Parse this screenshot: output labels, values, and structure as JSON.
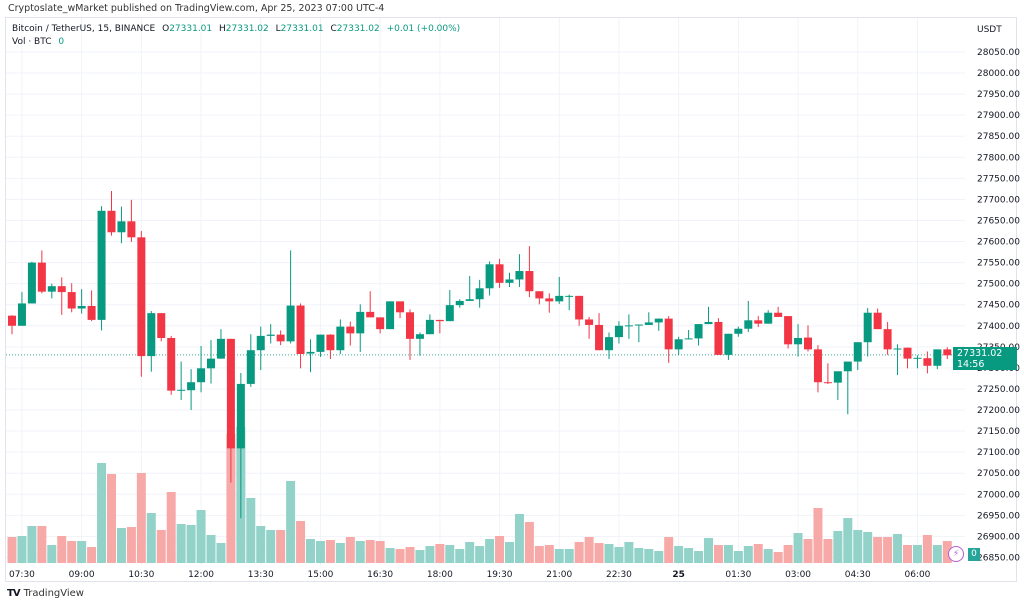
{
  "header": {
    "published": "Cryptoslate_wMarket published on TradingView.com, Apr 25, 2023 07:00 UTC-4"
  },
  "legend": {
    "symbol": "Bitcoin / TetherUS, 15, BINANCE",
    "o_label": "O",
    "o_value": "27331.01",
    "h_label": "H",
    "h_value": "27331.02",
    "l_label": "L",
    "l_value": "27331.01",
    "c_label": "C",
    "c_value": "27331.02",
    "change": "+0.01 (+0.00%)",
    "vol_label": "Vol · BTC",
    "vol_value": "0"
  },
  "price_axis": {
    "currency": "USDT",
    "current_price": "27331.02",
    "countdown": "14:56",
    "volume_badge": "0"
  },
  "footer": {
    "brand": "TradingView"
  },
  "colors": {
    "up": "#089981",
    "down": "#f23645",
    "vol_up": "#92d2c8",
    "vol_down": "#f7a9a7",
    "grid": "#f0f3fa"
  },
  "chart_data": {
    "type": "candlestick",
    "title": "Bitcoin / TetherUS, 15, BINANCE",
    "interval_minutes": 15,
    "first_candle_time": "07:15",
    "ylabel": "USDT",
    "ylim": [
      26850,
      28050
    ],
    "y_ticks": [
      28050,
      28000,
      27950,
      27900,
      27850,
      27800,
      27750,
      27700,
      27650,
      27600,
      27550,
      27500,
      27450,
      27400,
      27350,
      27300,
      27250,
      27200,
      27150,
      27100,
      27050,
      27000,
      26950,
      26900,
      26850
    ],
    "x_ticks": [
      {
        "label": "07:30",
        "candle": 1
      },
      {
        "label": "09:00",
        "candle": 7
      },
      {
        "label": "10:30",
        "candle": 13
      },
      {
        "label": "12:00",
        "candle": 19
      },
      {
        "label": "13:30",
        "candle": 25
      },
      {
        "label": "15:00",
        "candle": 31
      },
      {
        "label": "16:30",
        "candle": 37
      },
      {
        "label": "18:00",
        "candle": 43
      },
      {
        "label": "19:30",
        "candle": 49
      },
      {
        "label": "21:00",
        "candle": 55
      },
      {
        "label": "22:30",
        "candle": 61
      },
      {
        "label": "25",
        "candle": 67
      },
      {
        "label": "01:30",
        "candle": 73
      },
      {
        "label": "03:00",
        "candle": 79
      },
      {
        "label": "04:30",
        "candle": 85
      },
      {
        "label": "06:00",
        "candle": 91
      }
    ],
    "ohlc": [
      [
        27424,
        27425,
        27380,
        27400
      ],
      [
        27400,
        27480,
        27400,
        27453
      ],
      [
        27453,
        27552,
        27453,
        27550
      ],
      [
        27550,
        27579,
        27477,
        27481
      ],
      [
        27481,
        27500,
        27465,
        27494
      ],
      [
        27494,
        27515,
        27426,
        27480
      ],
      [
        27480,
        27501,
        27432,
        27441
      ],
      [
        27441,
        27487,
        27429,
        27447
      ],
      [
        27447,
        27484,
        27411,
        27414
      ],
      [
        27414,
        27684,
        27389,
        27673
      ],
      [
        27673,
        27720,
        27614,
        27622
      ],
      [
        27622,
        27683,
        27596,
        27648
      ],
      [
        27648,
        27699,
        27599,
        27610
      ],
      [
        27610,
        27625,
        27279,
        27328
      ],
      [
        27328,
        27435,
        27291,
        27430
      ],
      [
        27430,
        27430,
        27363,
        27371
      ],
      [
        27371,
        27376,
        27236,
        27246
      ],
      [
        27246,
        27315,
        27224,
        27248
      ],
      [
        27247,
        27297,
        27200,
        27266
      ],
      [
        27266,
        27352,
        27242,
        27299
      ],
      [
        27299,
        27366,
        27263,
        27322
      ],
      [
        27322,
        27392,
        27322,
        27369
      ],
      [
        27369,
        27369,
        27028,
        27109
      ],
      [
        27109,
        27288,
        26943,
        27262
      ],
      [
        27262,
        27380,
        27255,
        27342
      ],
      [
        27342,
        27398,
        27295,
        27376
      ],
      [
        27376,
        27404,
        27358,
        27379
      ],
      [
        27379,
        27389,
        27354,
        27363
      ],
      [
        27363,
        27579,
        27358,
        27448
      ],
      [
        27448,
        27453,
        27299,
        27333
      ],
      [
        27334,
        27368,
        27290,
        27338
      ],
      [
        27338,
        27379,
        27326,
        27379
      ],
      [
        27379,
        27380,
        27321,
        27342
      ],
      [
        27342,
        27415,
        27333,
        27398
      ],
      [
        27398,
        27410,
        27353,
        27382
      ],
      [
        27382,
        27451,
        27338,
        27433
      ],
      [
        27433,
        27482,
        27420,
        27420
      ],
      [
        27420,
        27420,
        27382,
        27392
      ],
      [
        27392,
        27458,
        27392,
        27458
      ],
      [
        27458,
        27458,
        27418,
        27432
      ],
      [
        27432,
        27439,
        27319,
        27369
      ],
      [
        27369,
        27384,
        27329,
        27380
      ],
      [
        27380,
        27427,
        27380,
        27414
      ],
      [
        27414,
        27414,
        27382,
        27411
      ],
      [
        27411,
        27485,
        27411,
        27449
      ],
      [
        27449,
        27463,
        27443,
        27459
      ],
      [
        27459,
        27518,
        27459,
        27463
      ],
      [
        27463,
        27509,
        27443,
        27489
      ],
      [
        27489,
        27553,
        27472,
        27546
      ],
      [
        27546,
        27559,
        27490,
        27502
      ],
      [
        27502,
        27526,
        27492,
        27510
      ],
      [
        27510,
        27570,
        27492,
        27530
      ],
      [
        27530,
        27589,
        27468,
        27482
      ],
      [
        27482,
        27482,
        27451,
        27465
      ],
      [
        27465,
        27477,
        27431,
        27458
      ],
      [
        27458,
        27516,
        27452,
        27471
      ],
      [
        27469,
        27474,
        27437,
        27471
      ],
      [
        27471,
        27471,
        27400,
        27415
      ],
      [
        27415,
        27421,
        27369,
        27402
      ],
      [
        27402,
        27430,
        27342,
        27342
      ],
      [
        27342,
        27384,
        27321,
        27373
      ],
      [
        27373,
        27411,
        27358,
        27400
      ],
      [
        27399,
        27427,
        27369,
        27401
      ],
      [
        27401,
        27403,
        27361,
        27403
      ],
      [
        27402,
        27432,
        27402,
        27408
      ],
      [
        27408,
        27417,
        27388,
        27417
      ],
      [
        27417,
        27423,
        27312,
        27344
      ],
      [
        27344,
        27374,
        27331,
        27368
      ],
      [
        27368,
        27390,
        27368,
        27370
      ],
      [
        27370,
        27404,
        27353,
        27404
      ],
      [
        27404,
        27445,
        27404,
        27409
      ],
      [
        27409,
        27418,
        27331,
        27331
      ],
      [
        27331,
        27381,
        27319,
        27381
      ],
      [
        27381,
        27398,
        27374,
        27393
      ],
      [
        27393,
        27459,
        27385,
        27413
      ],
      [
        27413,
        27423,
        27397,
        27405
      ],
      [
        27405,
        27437,
        27405,
        27431
      ],
      [
        27431,
        27445,
        27421,
        27421
      ],
      [
        27423,
        27423,
        27346,
        27356
      ],
      [
        27356,
        27404,
        27327,
        27371
      ],
      [
        27372,
        27401,
        27339,
        27344
      ],
      [
        27344,
        27354,
        27242,
        27266
      ],
      [
        27266,
        27311,
        27262,
        27265
      ],
      [
        27265,
        27292,
        27224,
        27292
      ],
      [
        27292,
        27315,
        27190,
        27315
      ],
      [
        27315,
        27361,
        27295,
        27361
      ],
      [
        27361,
        27442,
        27327,
        27431
      ],
      [
        27431,
        27441,
        27392,
        27392
      ],
      [
        27392,
        27409,
        27331,
        27344
      ],
      [
        27344,
        27356,
        27283,
        27346
      ],
      [
        27348,
        27348,
        27299,
        27322
      ],
      [
        27322,
        27330,
        27299,
        27324
      ],
      [
        27323,
        27339,
        27287,
        27305
      ],
      [
        27305,
        27344,
        27297,
        27344
      ],
      [
        27344,
        27349,
        27321,
        27330
      ],
      [
        27331.01,
        27331.02,
        27331.01,
        27331.02
      ]
    ],
    "volume_relative": [
      26,
      27,
      37,
      37,
      18,
      27,
      22,
      22,
      16,
      100,
      89,
      35,
      36,
      90,
      50,
      33,
      71,
      39,
      38,
      53,
      28,
      20,
      129,
      136,
      65,
      37,
      33,
      33,
      82,
      42,
      24,
      22,
      23,
      20,
      26,
      22,
      23,
      22,
      15,
      14,
      16,
      13,
      17,
      19,
      18,
      14,
      21,
      17,
      24,
      27,
      21,
      49,
      41,
      17,
      18,
      14,
      14,
      21,
      26,
      20,
      19,
      16,
      21,
      15,
      14,
      12,
      26,
      17,
      15,
      12,
      25,
      18,
      18,
      12,
      17,
      19,
      14,
      11,
      18,
      30,
      24,
      55,
      24,
      32,
      45,
      33,
      31,
      26,
      26,
      29,
      18,
      18,
      28,
      18,
      22,
      0
    ],
    "last_price": 27331.02
  }
}
